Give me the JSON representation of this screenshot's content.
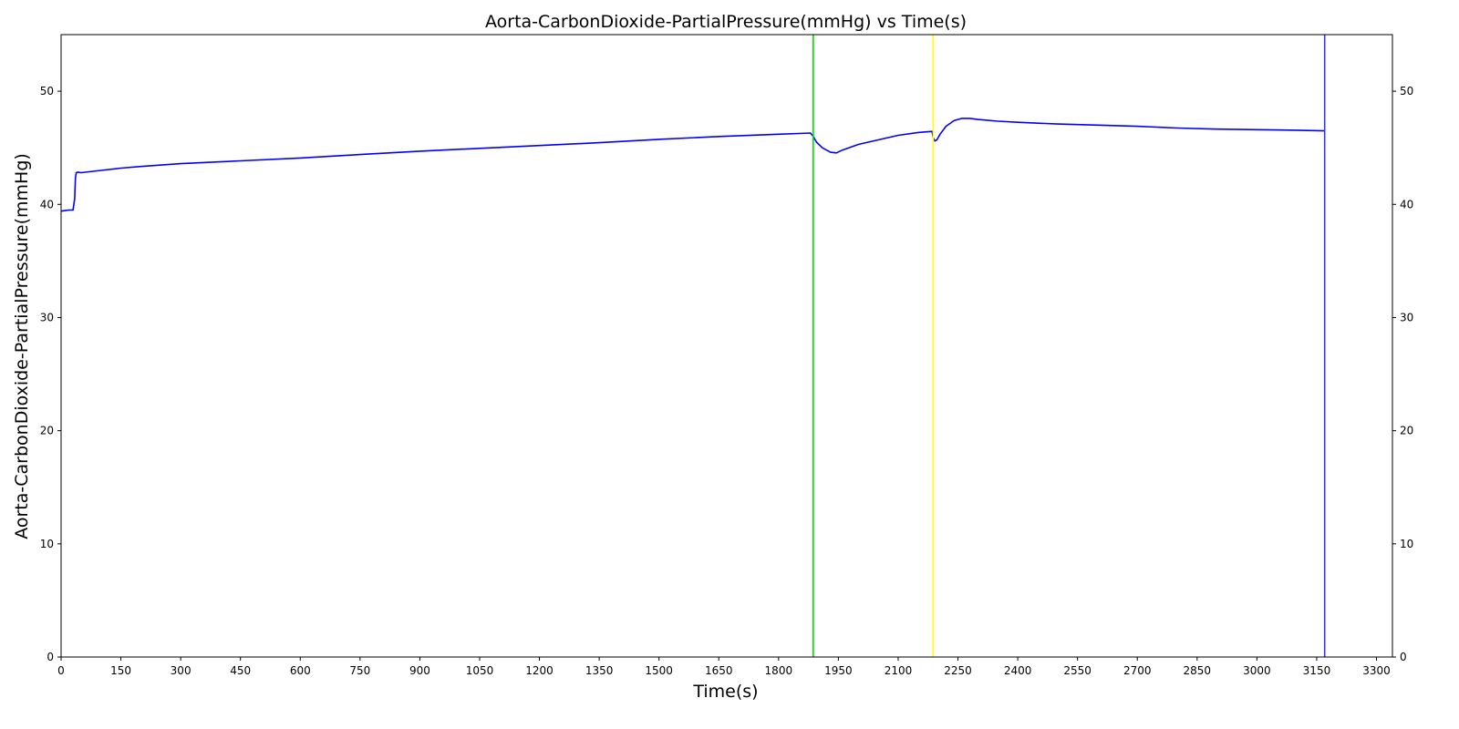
{
  "chart_data": {
    "type": "line",
    "title": "Aorta-CarbonDioxide-PartialPressure(mmHg) vs Time(s)",
    "xlabel": "Time(s)",
    "ylabel": "Aorta-CarbonDioxide-PartialPressure(mmHg)",
    "xlim": [
      0,
      3340
    ],
    "ylim": [
      0,
      55
    ],
    "xticks": [
      0,
      150,
      300,
      450,
      600,
      750,
      900,
      1050,
      1200,
      1350,
      1500,
      1650,
      1800,
      1950,
      2100,
      2250,
      2400,
      2550,
      2700,
      2850,
      3000,
      3150,
      3300
    ],
    "yticks": [
      0,
      10,
      20,
      30,
      40,
      50
    ],
    "right_axis_ticks": true,
    "grid": false,
    "legend": "none",
    "series": [
      {
        "color": "#0000ff",
        "x": [
          0,
          10,
          20,
          30,
          34,
          36,
          38,
          42,
          50,
          100,
          150,
          200,
          300,
          450,
          600,
          750,
          900,
          1050,
          1200,
          1350,
          1500,
          1650,
          1800,
          1880,
          1887,
          1895,
          1910,
          1930,
          1945,
          1960,
          2000,
          2050,
          2100,
          2150,
          2185,
          2188,
          2192,
          2197,
          2205,
          2220,
          2240,
          2260,
          2280,
          2300,
          2350,
          2400,
          2500,
          2600,
          2700,
          2800,
          2900,
          3000,
          3100,
          3170
        ],
        "y": [
          39.4,
          39.45,
          39.5,
          39.5,
          40.5,
          42.3,
          42.8,
          42.85,
          42.8,
          43.0,
          43.2,
          43.35,
          43.6,
          43.85,
          44.1,
          44.4,
          44.7,
          44.95,
          45.2,
          45.45,
          45.75,
          46.0,
          46.2,
          46.3,
          46.0,
          45.5,
          45.0,
          44.6,
          44.55,
          44.8,
          45.3,
          45.7,
          46.1,
          46.35,
          46.45,
          45.9,
          45.6,
          45.7,
          46.2,
          46.9,
          47.4,
          47.6,
          47.6,
          47.5,
          47.35,
          47.25,
          47.1,
          47.0,
          46.9,
          46.75,
          46.65,
          46.6,
          46.55,
          46.5
        ]
      }
    ],
    "vlines": [
      {
        "x": 1887,
        "color": "#00dd00"
      },
      {
        "x": 2188,
        "color": "#ffff00"
      },
      {
        "x": 3170,
        "color": "#3333ff"
      }
    ]
  }
}
